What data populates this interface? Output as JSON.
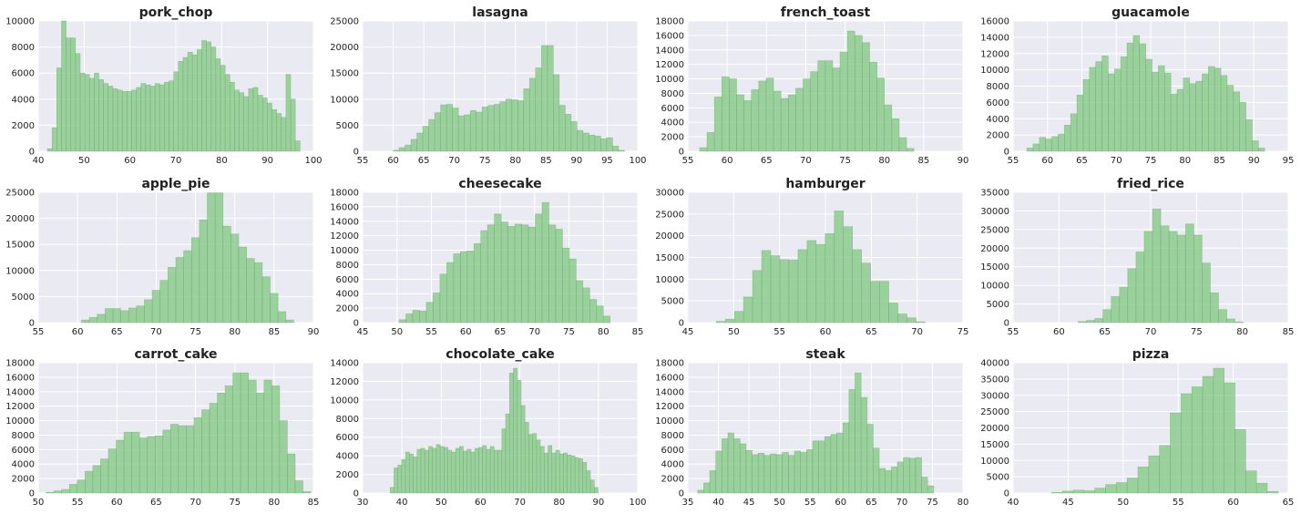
{
  "colors": {
    "panel_background": "#EAEAF2",
    "grid": "#FFFFFF",
    "bar_fill": "#7FC77F",
    "bar_edge": "#6AA56A"
  },
  "chart_data": [
    {
      "type": "bar",
      "title": "pork_chop",
      "xlim": [
        40,
        100
      ],
      "ylim": [
        0,
        10000
      ],
      "xticks": [
        40,
        50,
        60,
        70,
        80,
        90,
        100
      ],
      "yticks": [
        0,
        2000,
        4000,
        6000,
        8000,
        10000
      ],
      "bin_start": 42,
      "bin_width": 1.02,
      "values": [
        200,
        1800,
        6400,
        10000,
        8700,
        8700,
        7500,
        6000,
        5900,
        5600,
        6000,
        5500,
        5200,
        5000,
        4800,
        4700,
        4600,
        4600,
        4700,
        4900,
        5200,
        5100,
        5000,
        5200,
        5100,
        5300,
        5400,
        6100,
        6900,
        7200,
        7600,
        7400,
        7800,
        8500,
        8400,
        8000,
        7100,
        6600,
        5900,
        5300,
        4700,
        4500,
        4200,
        4800,
        4900,
        4300,
        4100,
        3700,
        3200,
        2900,
        2600,
        5900,
        4000,
        800
      ]
    },
    {
      "type": "bar",
      "title": "lasagna",
      "xlim": [
        55,
        100
      ],
      "ylim": [
        0,
        25000
      ],
      "xticks": [
        55,
        60,
        65,
        70,
        75,
        80,
        85,
        90,
        95,
        100
      ],
      "yticks": [
        0,
        5000,
        10000,
        15000,
        20000,
        25000
      ],
      "bin_start": 60,
      "bin_width": 0.97,
      "values": [
        200,
        700,
        1200,
        2300,
        3500,
        4800,
        6100,
        7400,
        8900,
        9000,
        8300,
        6800,
        7000,
        7800,
        7500,
        8500,
        8800,
        9000,
        9500,
        10000,
        9900,
        9700,
        12000,
        14000,
        16000,
        20300,
        20300,
        14700,
        8800,
        7100,
        5700,
        4000,
        3500,
        3100,
        2900,
        2400,
        2600,
        1000,
        200
      ]
    },
    {
      "type": "bar",
      "title": "french_toast",
      "xlim": [
        55,
        90
      ],
      "ylim": [
        0,
        18000
      ],
      "xticks": [
        55,
        60,
        65,
        70,
        75,
        80,
        85,
        90
      ],
      "yticks": [
        0,
        2000,
        4000,
        6000,
        8000,
        10000,
        12000,
        14000,
        16000,
        18000
      ],
      "bin_start": 56.5,
      "bin_width": 0.94,
      "values": [
        500,
        2600,
        7500,
        10300,
        10000,
        7800,
        7000,
        8500,
        9700,
        10100,
        8300,
        7300,
        7800,
        8700,
        10000,
        11000,
        12500,
        12500,
        11500,
        13700,
        16600,
        16000,
        15000,
        12300,
        10100,
        6400,
        4500,
        1900,
        400
      ]
    },
    {
      "type": "bar",
      "title": "guacamole",
      "xlim": [
        55,
        95
      ],
      "ylim": [
        0,
        16000
      ],
      "xticks": [
        55,
        60,
        65,
        70,
        75,
        80,
        85,
        90,
        95
      ],
      "yticks": [
        0,
        2000,
        4000,
        6000,
        8000,
        10000,
        12000,
        14000,
        16000
      ],
      "bin_start": 57,
      "bin_width": 0.91,
      "values": [
        400,
        900,
        1700,
        1500,
        1800,
        2100,
        3200,
        4600,
        6900,
        8800,
        10300,
        11000,
        11700,
        9500,
        10100,
        11600,
        13300,
        14200,
        13200,
        11300,
        9700,
        10500,
        9600,
        7000,
        7600,
        9000,
        8300,
        8600,
        9500,
        10400,
        10200,
        9300,
        8100,
        7300,
        6000,
        3900,
        1300,
        400
      ]
    },
    {
      "type": "bar",
      "title": "apple_pie",
      "xlim": [
        55,
        90
      ],
      "ylim": [
        0,
        25000
      ],
      "xticks": [
        55,
        60,
        65,
        70,
        75,
        80,
        85,
        90
      ],
      "yticks": [
        0,
        5000,
        10000,
        15000,
        20000,
        25000
      ],
      "bin_start": 60.5,
      "bin_width": 1.0,
      "values": [
        500,
        1000,
        1600,
        2700,
        2700,
        2300,
        2800,
        3200,
        4400,
        6200,
        8100,
        10600,
        12500,
        13800,
        16300,
        19700,
        24900,
        24900,
        18500,
        17000,
        14500,
        12300,
        11500,
        8800,
        5600,
        2100,
        500
      ]
    },
    {
      "type": "bar",
      "title": "cheesecake",
      "xlim": [
        45,
        85
      ],
      "ylim": [
        0,
        18000
      ],
      "xticks": [
        45,
        50,
        55,
        60,
        65,
        70,
        75,
        80,
        85
      ],
      "yticks": [
        0,
        2000,
        4000,
        6000,
        8000,
        10000,
        12000,
        14000,
        16000,
        18000
      ],
      "bin_start": 50.3,
      "bin_width": 0.99,
      "values": [
        400,
        1200,
        1700,
        1600,
        2800,
        4100,
        6700,
        8300,
        9500,
        9800,
        9900,
        10900,
        12700,
        13500,
        15000,
        13900,
        13300,
        13600,
        13500,
        13200,
        15000,
        16600,
        13500,
        12900,
        10300,
        8800,
        5800,
        4800,
        3200,
        2300,
        900
      ]
    },
    {
      "type": "bar",
      "title": "hamburger",
      "xlim": [
        45,
        75
      ],
      "ylim": [
        0,
        30000
      ],
      "xticks": [
        45,
        50,
        55,
        60,
        65,
        70,
        75
      ],
      "yticks": [
        0,
        5000,
        10000,
        15000,
        20000,
        25000,
        30000
      ],
      "bin_start": 48.1,
      "bin_width": 0.99,
      "values": [
        300,
        800,
        2600,
        5900,
        12000,
        16600,
        15400,
        14500,
        14400,
        16800,
        18900,
        18000,
        20500,
        25700,
        22100,
        16800,
        13700,
        9500,
        9500,
        4500,
        2000,
        1100,
        200
      ]
    },
    {
      "type": "bar",
      "title": "fried_rice",
      "xlim": [
        55,
        85
      ],
      "ylim": [
        0,
        35000
      ],
      "xticks": [
        55,
        60,
        65,
        70,
        75,
        80,
        85
      ],
      "yticks": [
        0,
        5000,
        10000,
        15000,
        20000,
        25000,
        30000,
        35000
      ],
      "bin_start": 62.1,
      "bin_width": 0.9,
      "values": [
        300,
        600,
        1100,
        3500,
        7000,
        9500,
        14500,
        19000,
        24500,
        30500,
        26000,
        24500,
        23500,
        26500,
        23500,
        16000,
        8000,
        3500,
        1000,
        200
      ]
    },
    {
      "type": "bar",
      "title": "carrot_cake",
      "xlim": [
        50,
        85
      ],
      "ylim": [
        0,
        18000
      ],
      "xticks": [
        50,
        55,
        60,
        65,
        70,
        75,
        80,
        85
      ],
      "yticks": [
        0,
        2000,
        4000,
        6000,
        8000,
        10000,
        12000,
        14000,
        16000,
        18000
      ],
      "bin_start": 51,
      "bin_width": 0.99,
      "values": [
        100,
        300,
        500,
        1200,
        1800,
        3000,
        3800,
        4700,
        6100,
        7300,
        8400,
        8400,
        7600,
        7800,
        7900,
        8700,
        9500,
        9300,
        9300,
        10400,
        11500,
        12400,
        13800,
        14800,
        16600,
        16600,
        15600,
        13800,
        15600,
        14800,
        10000,
        5400,
        1700,
        200
      ]
    },
    {
      "type": "bar",
      "title": "chocolate_cake",
      "xlim": [
        30,
        100
      ],
      "ylim": [
        0,
        14000
      ],
      "xticks": [
        30,
        40,
        50,
        60,
        70,
        80,
        90,
        100
      ],
      "yticks": [
        0,
        2000,
        4000,
        6000,
        8000,
        10000,
        12000,
        14000
      ],
      "bin_start": 37,
      "bin_width": 0.98,
      "values": [
        600,
        2700,
        3000,
        3600,
        4400,
        4200,
        3900,
        4700,
        4800,
        4600,
        5000,
        4800,
        5200,
        5000,
        4900,
        4600,
        4400,
        4800,
        5000,
        4500,
        4700,
        4400,
        4800,
        4900,
        5100,
        4700,
        5000,
        4600,
        4600,
        6900,
        8500,
        12900,
        13400,
        12100,
        9400,
        7600,
        6300,
        6400,
        5700,
        5000,
        4300,
        5100,
        4300,
        4600,
        4200,
        4300,
        4100,
        4000,
        3800,
        3700,
        3300,
        2400,
        1400,
        600
      ]
    },
    {
      "type": "bar",
      "title": "steak",
      "xlim": [
        35,
        80
      ],
      "ylim": [
        0,
        18000
      ],
      "xticks": [
        35,
        40,
        45,
        50,
        55,
        60,
        65,
        70,
        75,
        80
      ],
      "yticks": [
        0,
        2000,
        4000,
        6000,
        8000,
        10000,
        12000,
        14000,
        16000,
        18000
      ],
      "bin_start": 36.6,
      "bin_width": 0.99,
      "values": [
        400,
        1400,
        3100,
        5800,
        7500,
        8300,
        7500,
        6800,
        5900,
        5300,
        5500,
        5200,
        5400,
        5300,
        5600,
        5200,
        5800,
        5600,
        6000,
        7200,
        7200,
        7800,
        8100,
        8300,
        9700,
        14300,
        16600,
        13200,
        9500,
        6200,
        3400,
        3100,
        3600,
        4300,
        4900,
        4800,
        4900,
        2200,
        1000
      ]
    },
    {
      "type": "bar",
      "title": "pizza",
      "xlim": [
        40,
        65
      ],
      "ylim": [
        0,
        40000
      ],
      "xticks": [
        40,
        45,
        50,
        55,
        60,
        65
      ],
      "yticks": [
        0,
        5000,
        10000,
        15000,
        20000,
        25000,
        30000,
        35000,
        40000
      ],
      "bin_start": 43.5,
      "bin_width": 0.98,
      "values": [
        200,
        600,
        900,
        700,
        1500,
        2600,
        3200,
        4600,
        8000,
        11400,
        14600,
        24600,
        30500,
        32600,
        35800,
        38300,
        33800,
        19500,
        6800,
        3000,
        500
      ]
    }
  ]
}
